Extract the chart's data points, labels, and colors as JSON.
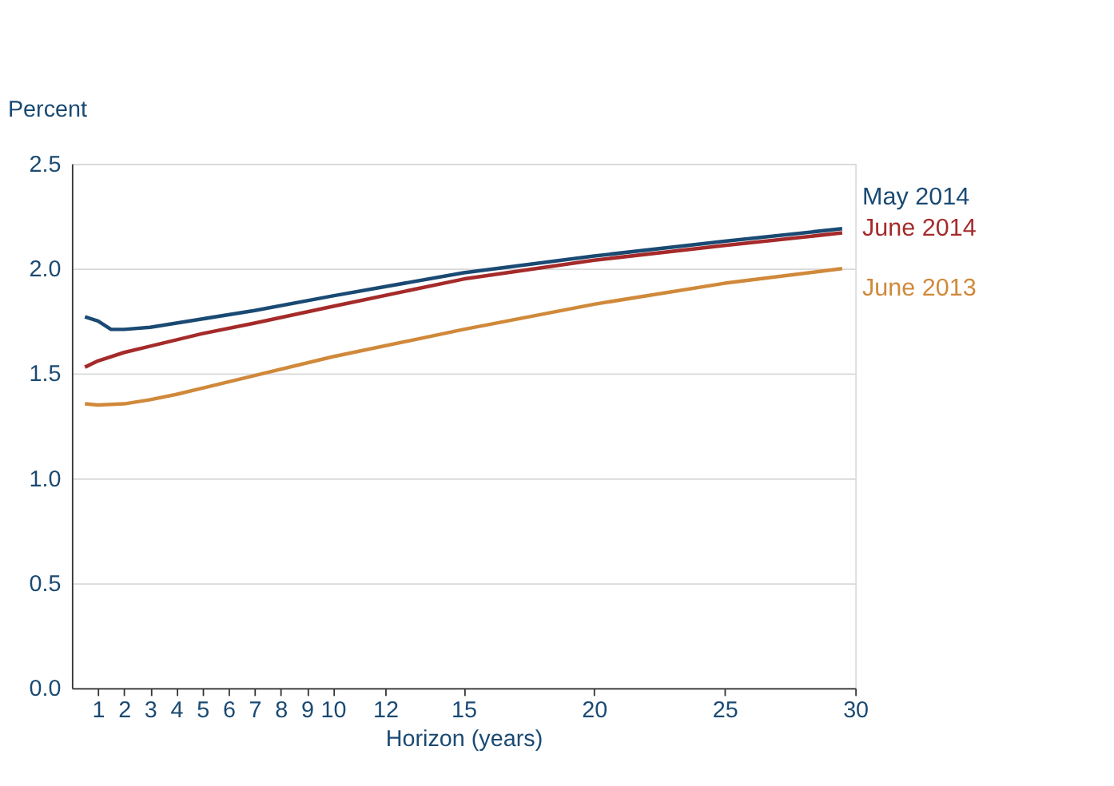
{
  "chart_data": {
    "type": "line",
    "ylabel": "Percent",
    "xlabel": "Horizon (years)",
    "xlim": [
      0,
      30
    ],
    "xticks": [
      1,
      2,
      3,
      4,
      5,
      6,
      7,
      8,
      9,
      10,
      12,
      15,
      20,
      25,
      30
    ],
    "ylim": [
      0,
      2.5
    ],
    "yticks": [
      {
        "value": 0,
        "label": "0.0"
      },
      0.5,
      {
        "value": 1,
        "label": "1.0"
      },
      1.5,
      {
        "value": 2,
        "label": "2.0"
      },
      2.5
    ],
    "grid": "y",
    "legend": false,
    "marker": "none",
    "line_style": "solid",
    "series": [
      {
        "name": "May 2014",
        "color": "#1a4a73",
        "x": [
          0.5,
          1,
          1.5,
          2,
          3,
          4,
          5,
          7,
          10,
          15,
          20,
          25,
          29.5
        ],
        "values": [
          1.77,
          1.75,
          1.71,
          1.71,
          1.72,
          1.74,
          1.76,
          1.8,
          1.87,
          1.98,
          2.06,
          2.13,
          2.19
        ]
      },
      {
        "name": "June 2014",
        "color": "#a52a2a",
        "x": [
          0.5,
          1,
          2,
          3,
          5,
          7,
          10,
          15,
          20,
          25,
          29.5
        ],
        "values": [
          1.53,
          1.56,
          1.6,
          1.63,
          1.69,
          1.74,
          1.82,
          1.95,
          2.04,
          2.11,
          2.17
        ]
      },
      {
        "name": "June 2013",
        "color": "#d0893a",
        "x": [
          0.5,
          1,
          2,
          3,
          4,
          5,
          7,
          10,
          15,
          20,
          25,
          29.5
        ],
        "values": [
          1.355,
          1.35,
          1.355,
          1.375,
          1.4,
          1.43,
          1.49,
          1.58,
          1.71,
          1.83,
          1.93,
          2.0
        ]
      }
    ]
  }
}
